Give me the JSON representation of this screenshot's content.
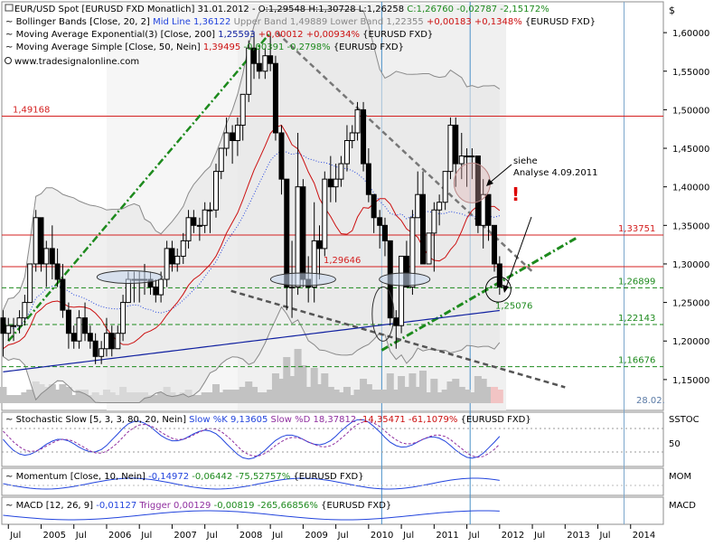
{
  "header": {
    "main_line1_prefix": "EUR/USD Spot [EURUSD FXD  Monatlich] 31.01.2012 - O:1,29548 H:1,30728 L:1,26258 ",
    "main_line1_change": "C:1,26760 -0,02787 -2,15172%",
    "bollinger_prefix": "Bollinger Bands [Close, 20, 2] ",
    "bollinger_mid": "Mid Line 1,36122",
    "bollinger_bands": " Upper Band 1,49889 Lower Band 1,22355",
    "bollinger_change": " +0,00183 +0,1348%",
    "bollinger_suffix": " {EURUSD FXD}",
    "ema_prefix": "Moving Average Exponential(3) [Close, 200] ",
    "ema_value": "1,25593",
    "ema_change": " +0,00012 +0,00934%",
    "ema_suffix": " {EURUSD FXD}",
    "sma_prefix": "Moving Average Simple [Close, 50, Nein] ",
    "sma_value": "1,39495",
    "sma_change": " -0,00391 -0,2798%",
    "sma_suffix": " {EURUSD FXD}",
    "source": "www.tradesignalonline.com",
    "currency_symbol": "$"
  },
  "annotations": {
    "siehe_line1": "siehe",
    "siehe_line2": "Analyse 4.09.2011",
    "exclamation": "!",
    "date_label": "28.02."
  },
  "subpanels": {
    "stoch_prefix": "Stochastic Slow [5, 3, 3, 80, 20, Nein] ",
    "stoch_k": "Slow %K 9,13605",
    "stoch_d": " Slow %D 18,37812",
    "stoch_change": " -14,35471 -61,1079%",
    "stoch_suffix": " {EURUSD FXD}",
    "stoch_tag": "SSTOC",
    "stoch_tick": "50",
    "mom_prefix": "Momentum [Close, 10, Nein] ",
    "mom_value": "-0,14972",
    "mom_change": " -0,06442 -75,52757%",
    "mom_suffix": " {EURUSD FXD}",
    "mom_tag": "MOM",
    "macd_prefix": "MACD [12, 26, 9] ",
    "macd_value": "-0,01127",
    "macd_trigger": " Trigger 0,00129",
    "macd_change": " -0,00819 -265,66856%",
    "macd_suffix": " {EURUSD FXD}",
    "macd_tag": "MACD"
  },
  "chart_data": {
    "type": "candlestick",
    "frequency": "monthly",
    "instrument": "EUR/USD Spot",
    "ylim": [
      1.11,
      1.64
    ],
    "y_ticks": [
      "1,15000",
      "1,20000",
      "1,25000",
      "1,30000",
      "1,35000",
      "1,40000",
      "1,45000",
      "1,50000",
      "1,55000",
      "1,60000"
    ],
    "y_tick_values": [
      1.15,
      1.2,
      1.25,
      1.3,
      1.35,
      1.4,
      1.45,
      1.5,
      1.55,
      1.6
    ],
    "x_tick_labels": [
      "Jul",
      "2005",
      "Jul",
      "2006",
      "Jul",
      "2007",
      "Jul",
      "2008",
      "Jul",
      "2009",
      "Jul",
      "2010",
      "Jul",
      "2011",
      "Jul",
      "2012",
      "Jul",
      "2013",
      "Jul",
      "2014"
    ],
    "x_tick_positions": [
      2004.5,
      2005,
      2005.5,
      2006,
      2006.5,
      2007,
      2007.5,
      2008,
      2008.5,
      2009,
      2009.5,
      2010,
      2010.5,
      2011,
      2011.5,
      2012,
      2012.5,
      2013,
      2013.5,
      2014
    ],
    "xlim": [
      2004.4,
      2014.5
    ],
    "horizontal_levels": [
      {
        "label": "1,49168",
        "value": 1.49168,
        "color": "#d42020",
        "style": "solid"
      },
      {
        "label": "1,33751",
        "value": 1.33751,
        "color": "#d42020",
        "style": "solid"
      },
      {
        "label": "1,29646",
        "value": 1.29646,
        "color": "#d42020",
        "style": "solid"
      },
      {
        "label": "1,26899",
        "value": 1.26899,
        "color": "#1d8a1d",
        "style": "dashed"
      },
      {
        "label": "1,22143",
        "value": 1.22143,
        "color": "#1d8a1d",
        "style": "dashed"
      },
      {
        "label": "1,16676",
        "value": 1.16676,
        "color": "#1d8a1d",
        "style": "dashed"
      }
    ],
    "support_label": "1,25076",
    "candles": [
      [
        2004.42,
        1.23,
        1.24,
        1.18,
        1.21
      ],
      [
        2004.5,
        1.21,
        1.23,
        1.2,
        1.22
      ],
      [
        2004.58,
        1.22,
        1.23,
        1.2,
        1.22
      ],
      [
        2004.67,
        1.22,
        1.24,
        1.21,
        1.23
      ],
      [
        2004.75,
        1.23,
        1.26,
        1.22,
        1.25
      ],
      [
        2004.83,
        1.25,
        1.3,
        1.25,
        1.3
      ],
      [
        2004.92,
        1.3,
        1.37,
        1.29,
        1.36
      ],
      [
        2005.0,
        1.36,
        1.36,
        1.29,
        1.3
      ],
      [
        2005.08,
        1.3,
        1.33,
        1.27,
        1.32
      ],
      [
        2005.17,
        1.32,
        1.35,
        1.28,
        1.3
      ],
      [
        2005.25,
        1.3,
        1.32,
        1.27,
        1.28
      ],
      [
        2005.33,
        1.28,
        1.3,
        1.23,
        1.24
      ],
      [
        2005.42,
        1.24,
        1.25,
        1.19,
        1.21
      ],
      [
        2005.5,
        1.21,
        1.22,
        1.19,
        1.2
      ],
      [
        2005.58,
        1.2,
        1.24,
        1.19,
        1.23
      ],
      [
        2005.67,
        1.23,
        1.25,
        1.2,
        1.21
      ],
      [
        2005.75,
        1.21,
        1.22,
        1.19,
        1.2
      ],
      [
        2005.83,
        1.2,
        1.21,
        1.17,
        1.18
      ],
      [
        2005.92,
        1.18,
        1.2,
        1.17,
        1.19
      ],
      [
        2006.0,
        1.19,
        1.23,
        1.18,
        1.21
      ],
      [
        2006.08,
        1.21,
        1.22,
        1.18,
        1.19
      ],
      [
        2006.17,
        1.19,
        1.22,
        1.19,
        1.21
      ],
      [
        2006.25,
        1.21,
        1.26,
        1.2,
        1.25
      ],
      [
        2006.33,
        1.25,
        1.29,
        1.25,
        1.28
      ],
      [
        2006.42,
        1.28,
        1.29,
        1.25,
        1.28
      ],
      [
        2006.5,
        1.28,
        1.29,
        1.25,
        1.28
      ],
      [
        2006.58,
        1.28,
        1.3,
        1.26,
        1.28
      ],
      [
        2006.67,
        1.28,
        1.29,
        1.26,
        1.27
      ],
      [
        2006.75,
        1.27,
        1.28,
        1.25,
        1.26
      ],
      [
        2006.83,
        1.26,
        1.29,
        1.25,
        1.28
      ],
      [
        2006.92,
        1.28,
        1.33,
        1.27,
        1.32
      ],
      [
        2007.0,
        1.32,
        1.33,
        1.29,
        1.3
      ],
      [
        2007.08,
        1.3,
        1.32,
        1.29,
        1.31
      ],
      [
        2007.17,
        1.31,
        1.34,
        1.3,
        1.33
      ],
      [
        2007.25,
        1.33,
        1.37,
        1.32,
        1.36
      ],
      [
        2007.33,
        1.36,
        1.37,
        1.34,
        1.35
      ],
      [
        2007.42,
        1.35,
        1.36,
        1.33,
        1.35
      ],
      [
        2007.5,
        1.35,
        1.38,
        1.34,
        1.37
      ],
      [
        2007.58,
        1.37,
        1.38,
        1.34,
        1.37
      ],
      [
        2007.67,
        1.37,
        1.43,
        1.36,
        1.42
      ],
      [
        2007.75,
        1.42,
        1.45,
        1.41,
        1.45
      ],
      [
        2007.83,
        1.45,
        1.49,
        1.44,
        1.47
      ],
      [
        2007.92,
        1.47,
        1.48,
        1.43,
        1.46
      ],
      [
        2008.0,
        1.46,
        1.49,
        1.44,
        1.48
      ],
      [
        2008.08,
        1.48,
        1.52,
        1.46,
        1.52
      ],
      [
        2008.17,
        1.52,
        1.59,
        1.51,
        1.58
      ],
      [
        2008.25,
        1.58,
        1.6,
        1.54,
        1.56
      ],
      [
        2008.33,
        1.56,
        1.58,
        1.54,
        1.55
      ],
      [
        2008.42,
        1.55,
        1.58,
        1.54,
        1.57
      ],
      [
        2008.5,
        1.57,
        1.6,
        1.55,
        1.56
      ],
      [
        2008.58,
        1.56,
        1.57,
        1.46,
        1.47
      ],
      [
        2008.67,
        1.47,
        1.48,
        1.39,
        1.41
      ],
      [
        2008.75,
        1.41,
        1.41,
        1.24,
        1.27
      ],
      [
        2008.83,
        1.27,
        1.33,
        1.23,
        1.27
      ],
      [
        2008.92,
        1.27,
        1.47,
        1.26,
        1.4
      ],
      [
        2009.0,
        1.4,
        1.41,
        1.27,
        1.28
      ],
      [
        2009.08,
        1.28,
        1.31,
        1.25,
        1.27
      ],
      [
        2009.17,
        1.27,
        1.38,
        1.25,
        1.33
      ],
      [
        2009.25,
        1.33,
        1.35,
        1.28,
        1.32
      ],
      [
        2009.33,
        1.32,
        1.42,
        1.31,
        1.41
      ],
      [
        2009.42,
        1.41,
        1.44,
        1.38,
        1.4
      ],
      [
        2009.5,
        1.4,
        1.43,
        1.38,
        1.41
      ],
      [
        2009.58,
        1.41,
        1.44,
        1.4,
        1.43
      ],
      [
        2009.67,
        1.43,
        1.48,
        1.42,
        1.46
      ],
      [
        2009.75,
        1.46,
        1.48,
        1.45,
        1.47
      ],
      [
        2009.83,
        1.47,
        1.51,
        1.46,
        1.5
      ],
      [
        2009.92,
        1.5,
        1.51,
        1.42,
        1.43
      ],
      [
        2010.0,
        1.43,
        1.45,
        1.38,
        1.39
      ],
      [
        2010.08,
        1.39,
        1.39,
        1.34,
        1.36
      ],
      [
        2010.17,
        1.36,
        1.37,
        1.32,
        1.35
      ],
      [
        2010.25,
        1.35,
        1.36,
        1.31,
        1.33
      ],
      [
        2010.33,
        1.33,
        1.33,
        1.22,
        1.23
      ],
      [
        2010.42,
        1.23,
        1.24,
        1.19,
        1.22
      ],
      [
        2010.5,
        1.22,
        1.31,
        1.21,
        1.31
      ],
      [
        2010.58,
        1.31,
        1.33,
        1.27,
        1.27
      ],
      [
        2010.67,
        1.27,
        1.37,
        1.26,
        1.36
      ],
      [
        2010.75,
        1.36,
        1.42,
        1.36,
        1.39
      ],
      [
        2010.83,
        1.39,
        1.42,
        1.3,
        1.3
      ],
      [
        2010.92,
        1.3,
        1.34,
        1.3,
        1.34
      ],
      [
        2011.0,
        1.34,
        1.38,
        1.29,
        1.37
      ],
      [
        2011.08,
        1.37,
        1.39,
        1.35,
        1.38
      ],
      [
        2011.17,
        1.38,
        1.42,
        1.37,
        1.42
      ],
      [
        2011.25,
        1.42,
        1.49,
        1.41,
        1.48
      ],
      [
        2011.33,
        1.48,
        1.49,
        1.4,
        1.43
      ],
      [
        2011.42,
        1.43,
        1.47,
        1.41,
        1.44
      ],
      [
        2011.5,
        1.44,
        1.45,
        1.4,
        1.44
      ],
      [
        2011.58,
        1.44,
        1.45,
        1.41,
        1.44
      ],
      [
        2011.67,
        1.44,
        1.44,
        1.34,
        1.35
      ],
      [
        2011.75,
        1.35,
        1.41,
        1.32,
        1.39
      ],
      [
        2011.83,
        1.39,
        1.39,
        1.33,
        1.35
      ],
      [
        2011.92,
        1.35,
        1.35,
        1.29,
        1.3
      ],
      [
        2012.0,
        1.3,
        1.31,
        1.26,
        1.27
      ]
    ],
    "overlays": [
      {
        "name": "Bollinger Upper",
        "color": "#888888"
      },
      {
        "name": "Bollinger Lower",
        "color": "#888888"
      },
      {
        "name": "Bollinger Mid",
        "color": "#2244dd"
      },
      {
        "name": "EMA 200",
        "color": "#1020a0"
      },
      {
        "name": "SMA 50",
        "color": "#cc1010"
      }
    ]
  }
}
